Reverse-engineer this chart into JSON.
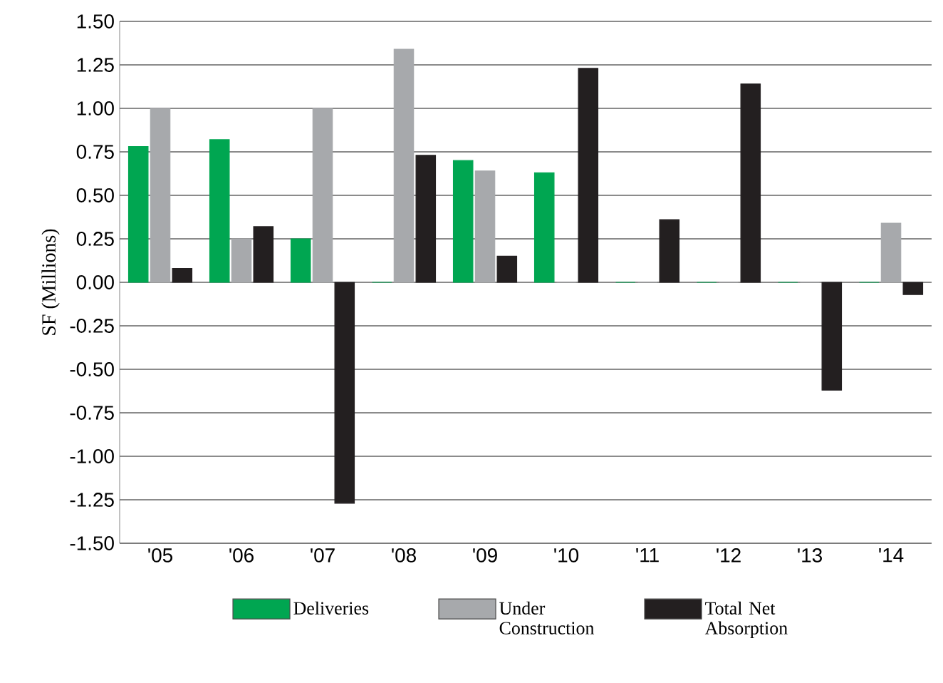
{
  "chart_data": {
    "type": "bar",
    "ylabel": "SF (Millions)",
    "categories": [
      "'05",
      "'06",
      "'07",
      "'08",
      "'09",
      "'10",
      "'11",
      "'12",
      "'13",
      "'14"
    ],
    "series": [
      {
        "name": "Deliveries",
        "color": "#00a651",
        "values": [
          0.78,
          0.82,
          0.25,
          0,
          0.7,
          0.63,
          0,
          0,
          0,
          0
        ]
      },
      {
        "name": "Under Construction",
        "color": "#a7a9ac",
        "values": [
          1.0,
          0.25,
          1.0,
          1.34,
          0.64,
          0,
          0,
          0,
          0,
          0.34
        ]
      },
      {
        "name": "Total Net Absorption",
        "color": "#231f20",
        "values": [
          0.08,
          0.32,
          -1.27,
          0.73,
          0.15,
          1.23,
          0.36,
          1.14,
          -0.62,
          -0.07
        ]
      }
    ],
    "ylim": [
      -1.5,
      1.5
    ],
    "yticks": [
      {
        "value": -1.5,
        "label": "-1.50"
      },
      {
        "value": -1.25,
        "label": "-1.25"
      },
      {
        "value": -1.0,
        "label": "-1.00"
      },
      {
        "value": -0.75,
        "label": "-0.75"
      },
      {
        "value": -0.5,
        "label": "-0.50"
      },
      {
        "value": -0.25,
        "label": "-0.25"
      },
      {
        "value": 0,
        "label": "0.00"
      },
      {
        "value": 0.25,
        "label": "0.25"
      },
      {
        "value": 0.5,
        "label": "0.50"
      },
      {
        "value": 0.75,
        "label": "0.75"
      },
      {
        "value": 1.0,
        "label": "1.00"
      },
      {
        "value": 1.25,
        "label": "1.25"
      },
      {
        "value": 1.5,
        "label": "1.50"
      }
    ],
    "grid": "y",
    "legend": "bottom"
  }
}
